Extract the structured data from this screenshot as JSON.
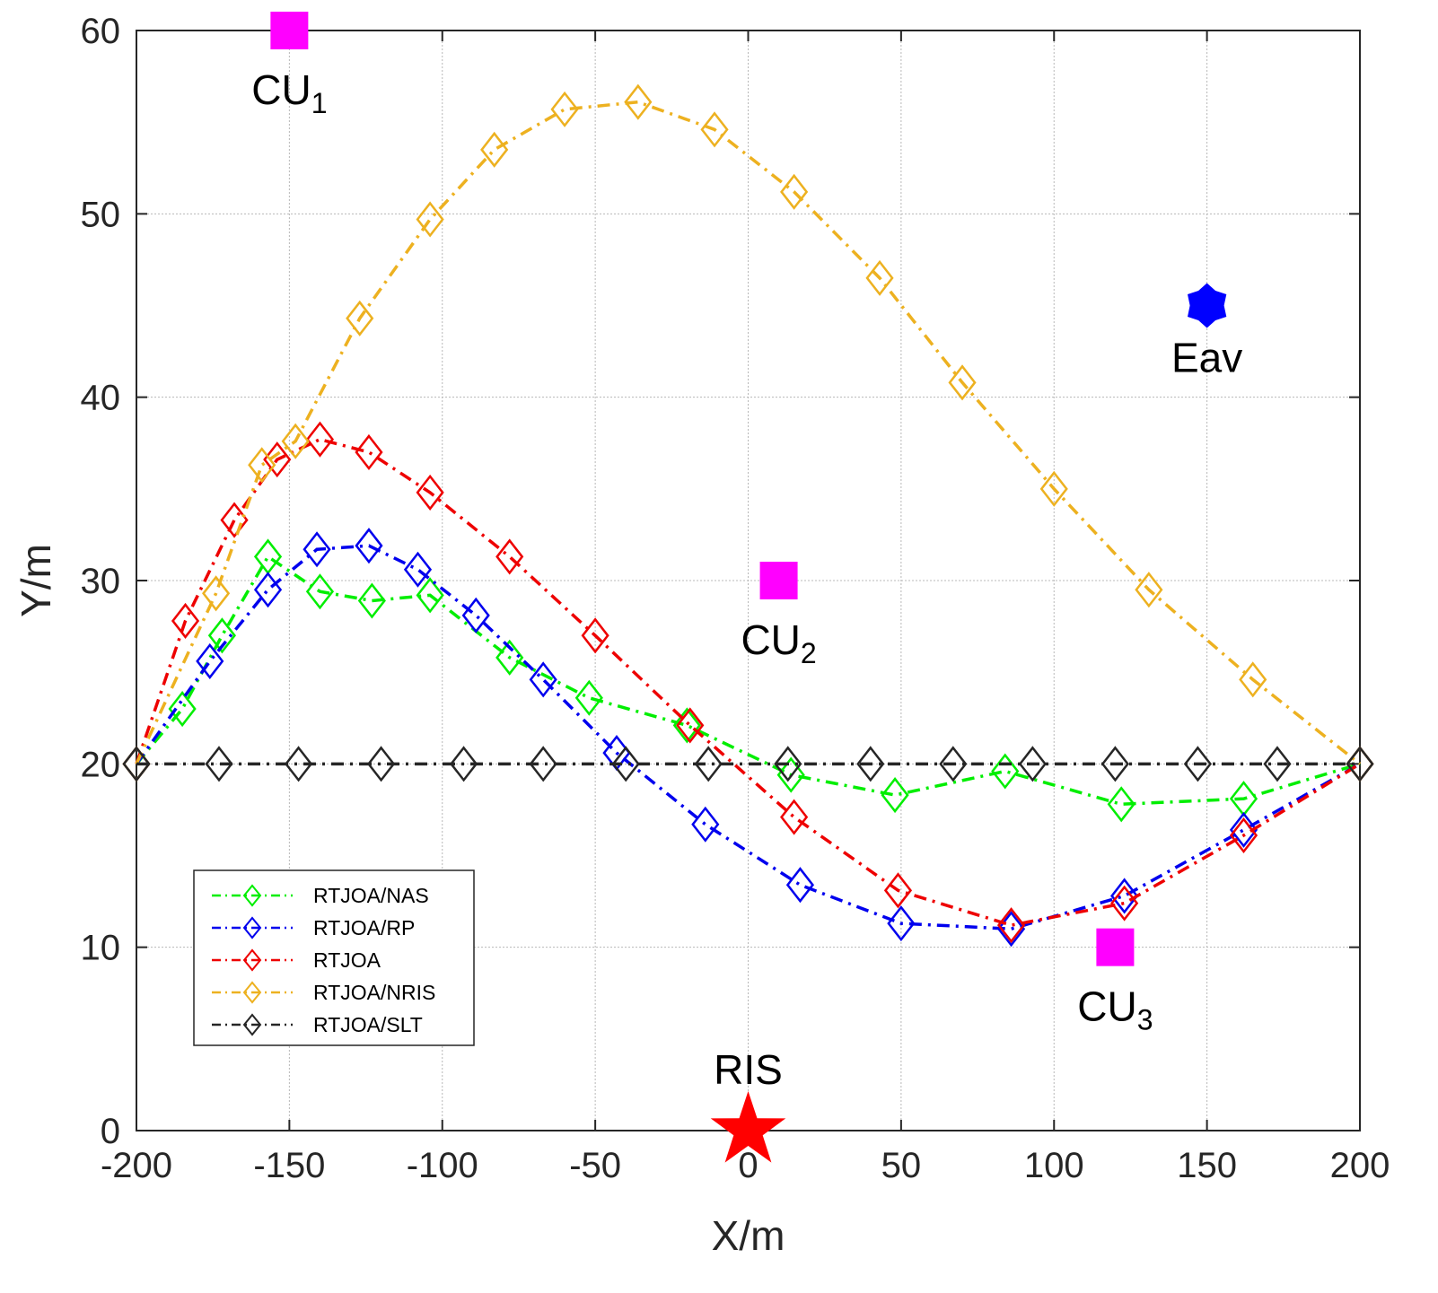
{
  "chart_data": {
    "type": "line",
    "title": "",
    "xlabel": "X/m",
    "ylabel": "Y/m",
    "xlim": [
      -200,
      200
    ],
    "ylim": [
      0,
      60
    ],
    "xticks": [
      -200,
      -150,
      -100,
      -50,
      0,
      50,
      100,
      150,
      200
    ],
    "yticks": [
      0,
      10,
      20,
      30,
      40,
      50,
      60
    ],
    "xtick_labels": [
      "-200",
      "-150",
      "-100",
      "-50",
      "0",
      "50",
      "100",
      "150",
      "200"
    ],
    "ytick_labels": [
      "0",
      "10",
      "20",
      "30",
      "40",
      "50",
      "60"
    ],
    "grid": true,
    "legend_position": "bottom-left",
    "series": [
      {
        "name": "RTJOA/NAS",
        "color": "#00ee00",
        "dash": "dashdot",
        "x": [
          -200,
          -185,
          -172,
          -157,
          -140,
          -123,
          -104,
          -78,
          -52,
          -20,
          14,
          48,
          84,
          122,
          162,
          200
        ],
        "y": [
          20,
          23,
          27,
          31.3,
          29.4,
          28.9,
          29.2,
          25.8,
          23.6,
          22.1,
          19.4,
          18.3,
          19.6,
          17.8,
          18.1,
          20
        ]
      },
      {
        "name": "RTJOA/RP",
        "color": "#0000ee",
        "dash": "dashdot",
        "x": [
          -200,
          -176,
          -157,
          -141,
          -124,
          -108,
          -89,
          -67,
          -43,
          -14,
          17,
          50,
          86,
          123,
          162,
          200
        ],
        "y": [
          20,
          25.6,
          29.5,
          31.7,
          31.9,
          30.6,
          28.1,
          24.6,
          20.6,
          16.7,
          13.4,
          11.3,
          11,
          12.8,
          16.4,
          20
        ]
      },
      {
        "name": "RTJOA",
        "color": "#ee0000",
        "dash": "dashdot",
        "x": [
          -200,
          -184,
          -168,
          -154,
          -140,
          -124,
          -104,
          -78,
          -50,
          -19,
          15,
          49,
          86,
          123,
          162,
          200
        ],
        "y": [
          20,
          27.8,
          33.3,
          36.6,
          37.7,
          37,
          34.8,
          31.3,
          27,
          22.1,
          17.1,
          13.1,
          11.2,
          12.4,
          16.1,
          20
        ]
      },
      {
        "name": "RTJOA/NRIS",
        "color": "#edb120",
        "dash": "dashdot",
        "x": [
          -200,
          -174,
          -159,
          -148,
          -127,
          -104,
          -83,
          -60,
          -36,
          -11,
          15,
          43,
          70,
          100,
          131,
          165,
          200
        ],
        "y": [
          20,
          29.3,
          36.3,
          37.6,
          44.3,
          49.7,
          53.5,
          55.7,
          56.1,
          54.6,
          51.2,
          46.5,
          40.8,
          35,
          29.5,
          24.6,
          20
        ]
      },
      {
        "name": "RTJOA/SLT",
        "color": "#262626",
        "dash": "dashdot",
        "x": [
          -200,
          -173,
          -147,
          -120,
          -93,
          -67,
          -40,
          -13,
          13,
          40,
          67,
          93,
          120,
          147,
          173,
          200
        ],
        "y": [
          20,
          20,
          20,
          20,
          20,
          20,
          20,
          20,
          20,
          20,
          20,
          20,
          20,
          20,
          20,
          20
        ]
      }
    ],
    "annotations": [
      {
        "id": "cu1",
        "label": "CU",
        "sub": "1",
        "marker": "square",
        "color": "#ff00ff",
        "x": -150,
        "y": 60
      },
      {
        "id": "cu2",
        "label": "CU",
        "sub": "2",
        "marker": "square",
        "color": "#ff00ff",
        "x": 10,
        "y": 30
      },
      {
        "id": "cu3",
        "label": "CU",
        "sub": "3",
        "marker": "square",
        "color": "#ff00ff",
        "x": 120,
        "y": 10
      },
      {
        "id": "eav",
        "label": "Eav",
        "sub": "",
        "marker": "hexagram",
        "color": "#0000ff",
        "x": 150,
        "y": 45
      },
      {
        "id": "ris",
        "label": "RIS",
        "sub": "",
        "marker": "pentagram",
        "color": "#ff0000",
        "x": 0,
        "y": 0
      }
    ]
  }
}
